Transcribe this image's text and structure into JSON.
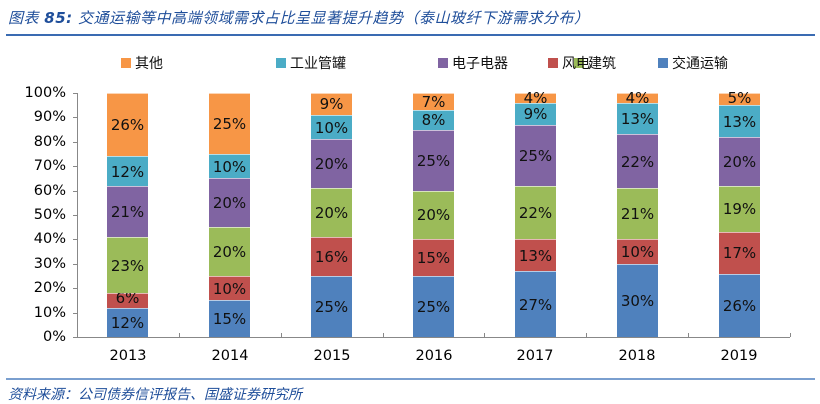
{
  "header": {
    "title_prefix": "图表",
    "title_num": "85:",
    "title_text": "交通运输等中高端领域需求占比呈显著提升趋势（泰山玻纤下游需求分布）"
  },
  "footer": {
    "source": "资料来源：公司债券信评报告、国盛证券研究所"
  },
  "colors": {
    "其他": "#f79646",
    "工业管罐": "#4bacc6",
    "电子电器": "#8064a2",
    "建筑": "#9bbb59",
    "风电": "#c0504d",
    "交通运输": "#4f81bd",
    "rule": "#3a6bb2",
    "title": "#1f4e9a"
  },
  "legend": [
    {
      "label": "其他",
      "color": "#f79646"
    },
    {
      "label": "工业管罐",
      "color": "#4bacc6"
    },
    {
      "label": "电子电器",
      "color": "#8064a2"
    },
    {
      "label": "建筑",
      "color": "#9bbb59"
    },
    {
      "label": "风电",
      "color": "#c0504d"
    },
    {
      "label": "交通运输",
      "color": "#4f81bd"
    }
  ],
  "chart_data": {
    "type": "bar",
    "stacked": true,
    "percent": true,
    "title": "交通运输等中高端领域需求占比呈显著提升趋势（泰山玻纤下游需求分布）",
    "xlabel": "",
    "ylabel": "",
    "ylim": [
      0,
      100
    ],
    "yticks": [
      "0%",
      "10%",
      "20%",
      "30%",
      "40%",
      "50%",
      "60%",
      "70%",
      "80%",
      "90%",
      "100%"
    ],
    "categories": [
      "2013",
      "2014",
      "2015",
      "2016",
      "2017",
      "2018",
      "2019"
    ],
    "legend_position": "top",
    "grid": false,
    "series": [
      {
        "name": "交通运输",
        "color": "#4f81bd",
        "values": [
          12,
          15,
          25,
          25,
          27,
          30,
          26
        ]
      },
      {
        "name": "风电",
        "color": "#c0504d",
        "values": [
          6,
          10,
          16,
          15,
          13,
          10,
          17
        ]
      },
      {
        "name": "建筑",
        "color": "#9bbb59",
        "values": [
          23,
          20,
          20,
          20,
          22,
          21,
          19
        ]
      },
      {
        "name": "电子电器",
        "color": "#8064a2",
        "values": [
          21,
          20,
          20,
          25,
          25,
          22,
          20
        ]
      },
      {
        "name": "工业管罐",
        "color": "#4bacc6",
        "values": [
          12,
          10,
          10,
          8,
          9,
          13,
          13
        ]
      },
      {
        "name": "其他",
        "color": "#f79646",
        "values": [
          26,
          25,
          9,
          7,
          4,
          4,
          5
        ]
      }
    ]
  }
}
